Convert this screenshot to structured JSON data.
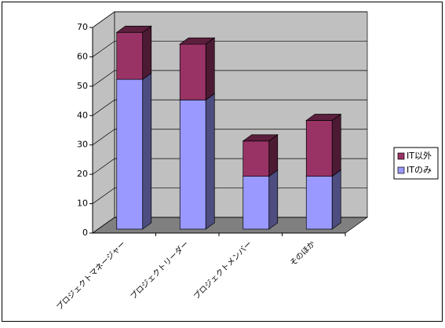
{
  "chart_data": {
    "type": "bar3d-stacked",
    "categories": [
      "プロジェクトマネージャー",
      "プロジェクトリーダー",
      "プロジェクトメンバー",
      "そのほか"
    ],
    "series": [
      {
        "name": "ITのみ",
        "color": "#9999ff",
        "values": [
          51,
          44,
          18,
          18
        ]
      },
      {
        "name": "IT以外",
        "color": "#993366",
        "values": [
          16,
          19,
          12,
          19
        ]
      }
    ],
    "ylim": [
      0,
      70
    ],
    "yticks": [
      0,
      10,
      20,
      30,
      40,
      50,
      60,
      70
    ],
    "grid": true,
    "legend": "right"
  }
}
